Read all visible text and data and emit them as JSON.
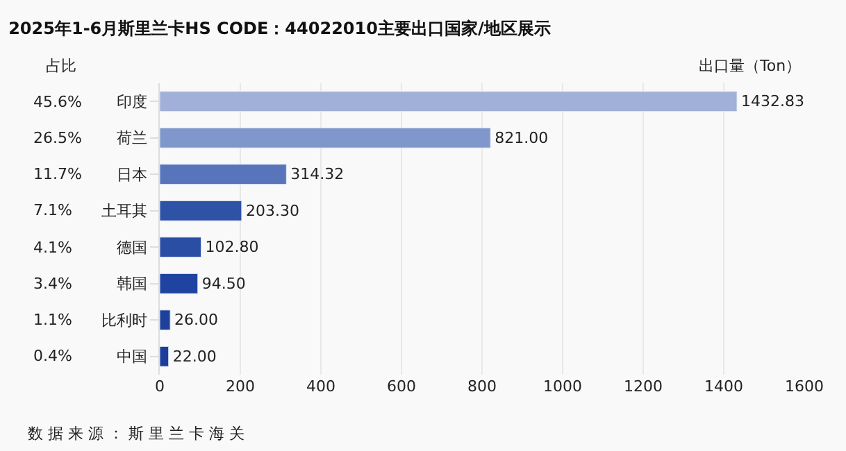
{
  "chart_data": {
    "type": "bar",
    "orientation": "horizontal",
    "title": "2025年1-6月斯里兰卡HS CODE：44022010主要出口国家/地区展示",
    "xlabel": "出口量（Ton）",
    "categories": [
      "印度",
      "荷兰",
      "日本",
      "土耳其",
      "德国",
      "韩国",
      "比利时",
      "中国"
    ],
    "values": [
      1432.83,
      821.0,
      314.32,
      203.3,
      102.8,
      94.5,
      26.0,
      22.0
    ],
    "value_labels": [
      "1432.83",
      "821.00",
      "314.32",
      "203.30",
      "102.80",
      "94.50",
      "26.00",
      "22.00"
    ],
    "colors": [
      "#a0b0d8",
      "#8097cb",
      "#5874bb",
      "#2e52a6",
      "#2a4ea4",
      "#1f43a0",
      "#1d409c",
      "#1c3e9a"
    ],
    "xlim": [
      0,
      1600
    ],
    "xticks": [
      0,
      200,
      400,
      600,
      800,
      1000,
      1200,
      1400,
      1600
    ],
    "grid": "x",
    "annotations": [
      "占比",
      "45.6%",
      "26.5%",
      "11.7%",
      "7.1%",
      "4.1%",
      "3.4%",
      "1.1%",
      "0.4%",
      "数 据 来 源 ： 斯 里 兰 卡 海 关"
    ]
  }
}
